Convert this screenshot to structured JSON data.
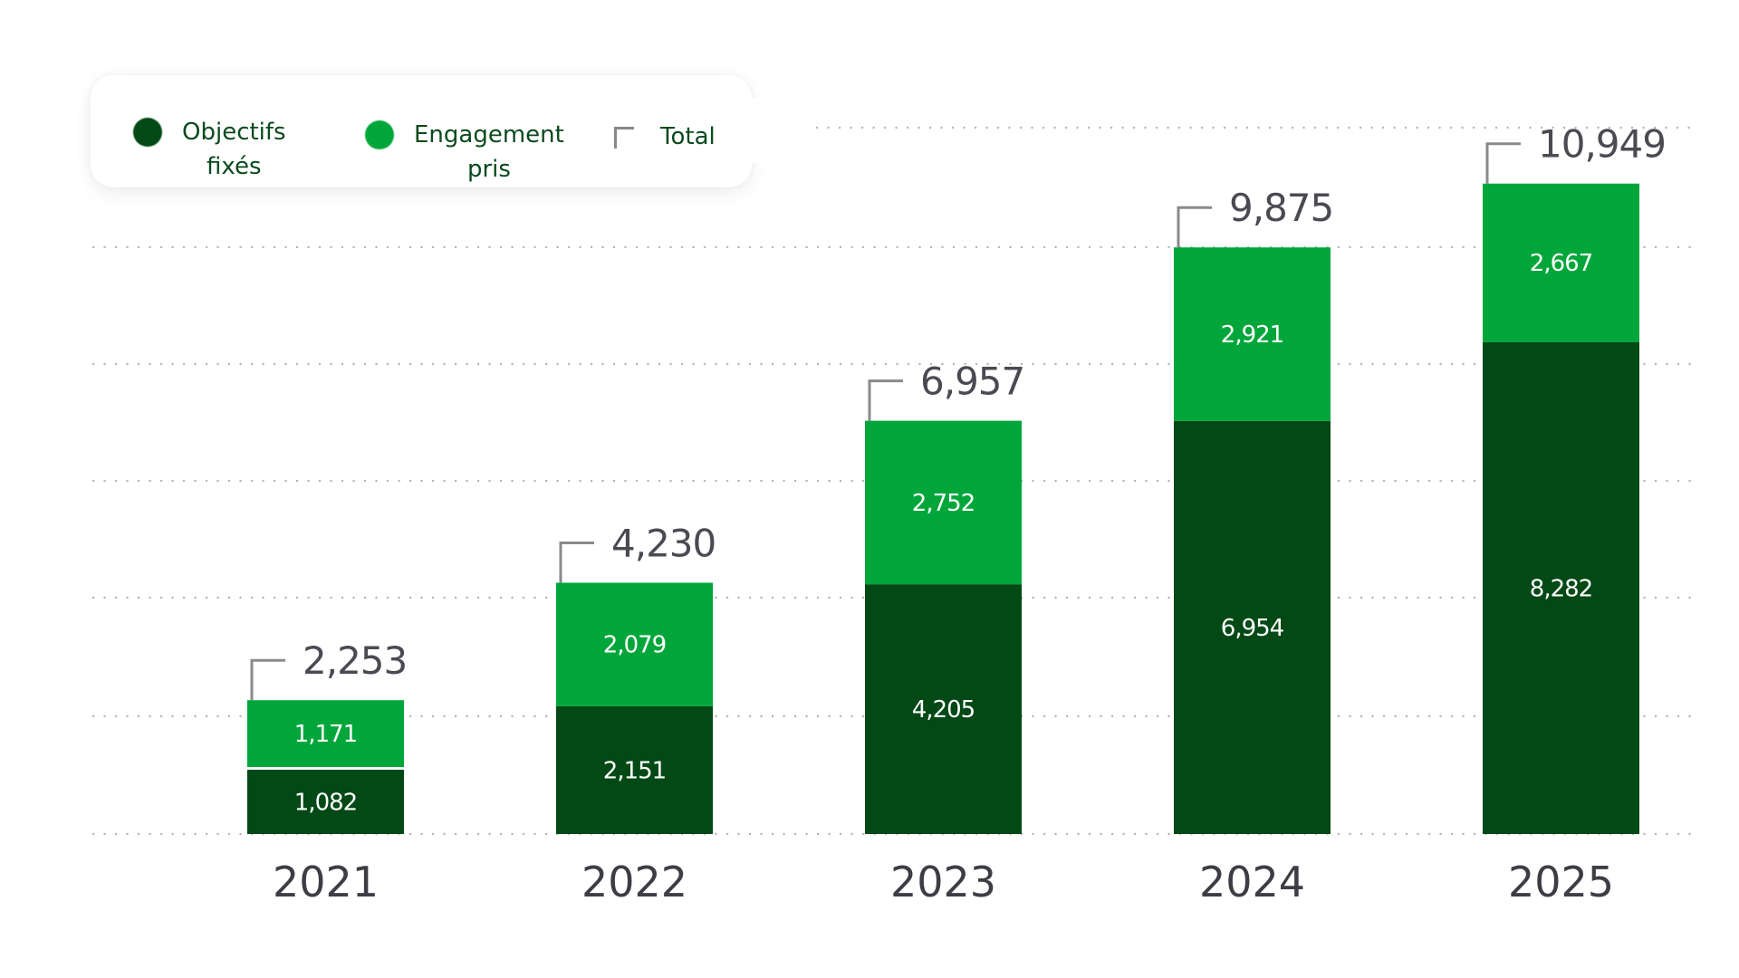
{
  "legend": {
    "items": [
      {
        "label_line1": "Objectifs",
        "label_line2": "fixés",
        "color": "#024916",
        "icon": "dark-green-dot"
      },
      {
        "label_line1": "Engagement",
        "label_line2": "pris",
        "color": "#00a63a",
        "icon": "light-green-dot"
      },
      {
        "label_line1": "Total",
        "label_line2": "",
        "color": "#888888",
        "icon": "bracket-icon"
      }
    ]
  },
  "colors": {
    "objectifs": "#024916",
    "engagement": "#00a63a",
    "total_text": "#4a4a52",
    "year_text": "#3d3d45",
    "gridline": "#b5b5b5",
    "bracket": "#8a8a8a"
  },
  "chart_data": {
    "type": "bar",
    "stacked": true,
    "title": "",
    "xlabel": "",
    "ylabel": "",
    "categories": [
      "2021",
      "2022",
      "2023",
      "2024",
      "2025"
    ],
    "series": [
      {
        "name": "Objectifs fixés",
        "values": [
          1082,
          2151,
          4205,
          6954,
          8282
        ],
        "labels": [
          "1,082",
          "2,151",
          "4,205",
          "6,954",
          "8,282"
        ]
      },
      {
        "name": "Engagement pris",
        "values": [
          1171,
          2079,
          2752,
          2921,
          2667
        ],
        "labels": [
          "1,171",
          "2,079",
          "2,752",
          "2,921",
          "2,667"
        ]
      }
    ],
    "totals": {
      "name": "Total",
      "values": [
        2253,
        4230,
        6957,
        9875,
        10949
      ],
      "labels": [
        "2,253",
        "4,230",
        "6,957",
        "9,875",
        "10,949"
      ]
    },
    "ylim": [
      0,
      14000
    ],
    "grid": true,
    "legend_position": "top-left"
  }
}
